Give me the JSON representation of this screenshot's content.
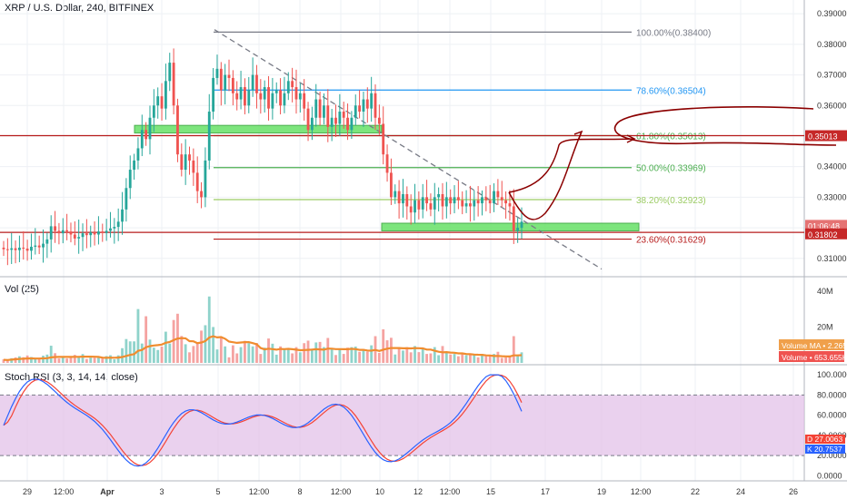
{
  "header": {
    "symbol": "XRP / U.S. Dollar, 240, BITFINEX",
    "vol_label": "Vol (25)",
    "stoch_label": "Stoch RSI (3, 3, 14, 14, close)"
  },
  "colors": {
    "up": "#26a69a",
    "down": "#ef5350",
    "up_vol": "#8fd3cb",
    "down_vol": "#f5a3a1",
    "vol_ma": "#f08c2e",
    "stoch_k": "#2962ff",
    "stoch_d": "#f44336",
    "stoch_band": "#e1bee7",
    "grid": "#eef0f4",
    "axis_text": "#333333",
    "annotation": "#8b0000"
  },
  "chart_data": [
    {
      "type": "candlestick",
      "title": "XRP / U.S. Dollar, 240, BITFINEX",
      "ylim": [
        0.304,
        0.3945
      ],
      "y_ticks": [
        "0.39000",
        "0.38000",
        "0.37000",
        "0.36000",
        "0.35000",
        "0.34000",
        "0.33000",
        "0.32000",
        "0.31000"
      ],
      "x_ticks": [
        "29",
        "12:00",
        "Apr",
        "3",
        "5",
        "12:00",
        "8",
        "12:00",
        "10",
        "12",
        "12:00",
        "15",
        "17",
        "19",
        "12:00",
        "22",
        "24",
        "26"
      ],
      "close_start": 0.3135,
      "closes": [
        0.313,
        0.3128,
        0.3133,
        0.3127,
        0.3135,
        0.3132,
        0.3125,
        0.3138,
        0.3142,
        0.3136,
        0.3148,
        0.3162,
        0.3205,
        0.319,
        0.3182,
        0.3192,
        0.3188,
        0.3178,
        0.3165,
        0.317,
        0.3182,
        0.3176,
        0.3185,
        0.3178,
        0.3188,
        0.3183,
        0.319,
        0.3198,
        0.3203,
        0.322,
        0.326,
        0.333,
        0.339,
        0.342,
        0.346,
        0.352,
        0.349,
        0.356,
        0.36,
        0.363,
        0.359,
        0.368,
        0.374,
        0.36,
        0.344,
        0.339,
        0.344,
        0.342,
        0.338,
        0.332,
        0.33,
        0.342,
        0.358,
        0.369,
        0.372,
        0.365,
        0.37,
        0.369,
        0.364,
        0.362,
        0.366,
        0.36,
        0.365,
        0.37,
        0.364,
        0.362,
        0.366,
        0.359,
        0.364,
        0.365,
        0.36,
        0.364,
        0.368,
        0.366,
        0.362,
        0.364,
        0.359,
        0.352,
        0.356,
        0.362,
        0.356,
        0.36,
        0.353,
        0.356,
        0.354,
        0.358,
        0.356,
        0.352,
        0.356,
        0.36,
        0.358,
        0.362,
        0.359,
        0.364,
        0.356,
        0.354,
        0.344,
        0.338,
        0.33,
        0.332,
        0.328,
        0.331,
        0.327,
        0.325,
        0.329,
        0.326,
        0.33,
        0.328,
        0.326,
        0.33,
        0.331,
        0.327,
        0.33,
        0.328,
        0.33,
        0.329,
        0.327,
        0.328,
        0.327,
        0.329,
        0.328,
        0.33,
        0.329,
        0.328,
        0.332,
        0.33,
        0.329,
        0.328,
        0.327,
        0.319,
        0.32,
        0.322
      ],
      "horizontal_levels": [
        {
          "label": "100.00%(0.38400)",
          "value": 0.384,
          "color": "#787b86",
          "x0": 0.25,
          "x1": 0.75
        },
        {
          "label": "78.60%(0.36504)",
          "value": 0.36504,
          "color": "#2196f3",
          "x0": 0.25,
          "x1": 0.75
        },
        {
          "label": "61.80%(0.35013)",
          "value": 0.35013,
          "color": "#4caf50",
          "x0": 0.25,
          "x1": 0.75
        },
        {
          "label": "50.00%(0.33969)",
          "value": 0.33969,
          "color": "#4caf50",
          "x0": 0.25,
          "x1": 0.75
        },
        {
          "label": "38.20%(0.32923)",
          "value": 0.32923,
          "color": "#9ccc65",
          "x0": 0.25,
          "x1": 0.75
        },
        {
          "label": "23.60%(0.31629)",
          "value": 0.31629,
          "color": "#b71c1c",
          "x0": 0.25,
          "x1": 0.75
        },
        {
          "label": "",
          "value": 0.35013,
          "color": "#b71c1c",
          "x0": 0.0,
          "x1": 1.0
        },
        {
          "label": "",
          "value": 0.3185,
          "color": "#b71c1c",
          "x0": 0.0,
          "x1": 1.0
        }
      ],
      "zones": [
        {
          "from": 0.351,
          "to": 0.3535,
          "color": "#66e066"
        },
        {
          "from": 0.319,
          "to": 0.3215,
          "color": "#66e066"
        }
      ],
      "price_labels": [
        {
          "text": "0.35013",
          "value": 0.35013,
          "color": "#c62828"
        },
        {
          "text": "01:06:48",
          "value": 0.3208,
          "color": "#e57373"
        },
        {
          "text": "0.31802",
          "value": 0.31802,
          "color": "#c62828"
        }
      ]
    },
    {
      "type": "bar",
      "title": "Vol (25)",
      "ylim": [
        0,
        46
      ],
      "y_ticks": [
        "40M",
        "20M"
      ],
      "series": [
        {
          "name": "Volume MA",
          "value_label": "2.265M"
        },
        {
          "name": "Volume",
          "value_label": "653.655K"
        }
      ]
    },
    {
      "type": "line",
      "title": "Stoch RSI (3, 3, 14, 14, close)",
      "ylim": [
        -5,
        110
      ],
      "y_ticks": [
        "100.0000",
        "80.0000",
        "60.0000",
        "40.0000",
        "20.0000",
        "0.0000"
      ],
      "band": [
        20,
        80
      ],
      "series": [
        {
          "name": "D",
          "value_label": "27.0063"
        },
        {
          "name": "K",
          "value_label": "20.7537"
        }
      ]
    }
  ]
}
